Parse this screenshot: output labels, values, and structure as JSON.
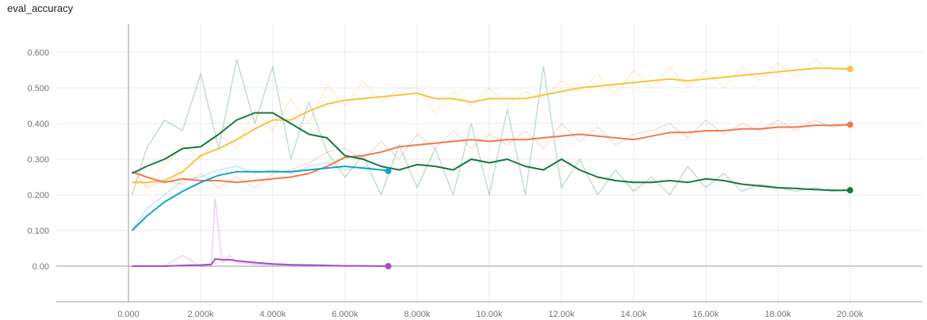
{
  "chart_data": {
    "type": "line",
    "title": "eval_accuracy",
    "xlabel": "",
    "ylabel": "",
    "xlim": [
      -2000,
      22000
    ],
    "ylim": [
      -0.1,
      0.68
    ],
    "x_ticks": [
      0,
      2000,
      4000,
      6000,
      8000,
      10000,
      12000,
      14000,
      16000,
      18000,
      20000
    ],
    "x_tick_labels": [
      "0.000",
      "2.000k",
      "4.000k",
      "6.000k",
      "8.000k",
      "10.00k",
      "12.00k",
      "14.00k",
      "16.00k",
      "18.00k",
      "20.00k"
    ],
    "y_ticks": [
      0.0,
      0.1,
      0.2,
      0.3,
      0.4,
      0.5,
      0.6
    ],
    "y_tick_labels": [
      "0.00",
      "0.100",
      "0.200",
      "0.300",
      "0.400",
      "0.500",
      "0.600"
    ],
    "grid": true,
    "legend": "none",
    "series": [
      {
        "color": "#f6c342",
        "x": [
          100,
          500,
          1000,
          1500,
          2000,
          2500,
          3000,
          3500,
          4000,
          4500,
          5000,
          5500,
          6000,
          6500,
          7000,
          7500,
          8000,
          8500,
          9000,
          9500,
          10000,
          10500,
          11000,
          11500,
          12000,
          12500,
          13000,
          13500,
          14000,
          14500,
          15000,
          15500,
          16000,
          16500,
          17000,
          17500,
          18000,
          18500,
          19000,
          19500,
          20000
        ],
        "smooth": [
          0.235,
          0.235,
          0.24,
          0.265,
          0.31,
          0.33,
          0.355,
          0.385,
          0.41,
          0.41,
          0.435,
          0.455,
          0.465,
          0.47,
          0.475,
          0.48,
          0.485,
          0.47,
          0.47,
          0.46,
          0.47,
          0.47,
          0.47,
          0.48,
          0.49,
          0.5,
          0.505,
          0.51,
          0.515,
          0.52,
          0.525,
          0.52,
          0.525,
          0.53,
          0.535,
          0.54,
          0.545,
          0.55,
          0.555,
          0.555,
          0.553
        ],
        "raw": [
          0.245,
          0.23,
          0.28,
          0.34,
          0.3,
          0.37,
          0.33,
          0.44,
          0.38,
          0.47,
          0.4,
          0.51,
          0.45,
          0.52,
          0.46,
          0.5,
          0.5,
          0.43,
          0.49,
          0.45,
          0.5,
          0.45,
          0.49,
          0.47,
          0.52,
          0.49,
          0.54,
          0.48,
          0.55,
          0.5,
          0.56,
          0.5,
          0.55,
          0.5,
          0.56,
          0.52,
          0.57,
          0.53,
          0.58,
          0.55,
          0.555
        ]
      },
      {
        "color": "#f07a4a",
        "x": [
          100,
          500,
          1000,
          1500,
          2000,
          2500,
          3000,
          3500,
          4000,
          4500,
          5000,
          5500,
          6000,
          6500,
          7000,
          7500,
          8000,
          8500,
          9000,
          9500,
          10000,
          10500,
          11000,
          11500,
          12000,
          12500,
          13000,
          13500,
          14000,
          14500,
          15000,
          15500,
          16000,
          16500,
          17000,
          17500,
          18000,
          18500,
          19000,
          19500,
          20000
        ],
        "smooth": [
          0.265,
          0.25,
          0.235,
          0.245,
          0.24,
          0.24,
          0.235,
          0.24,
          0.245,
          0.25,
          0.26,
          0.28,
          0.305,
          0.31,
          0.32,
          0.335,
          0.34,
          0.345,
          0.35,
          0.355,
          0.35,
          0.355,
          0.355,
          0.36,
          0.365,
          0.37,
          0.365,
          0.36,
          0.355,
          0.365,
          0.375,
          0.375,
          0.38,
          0.38,
          0.385,
          0.385,
          0.39,
          0.39,
          0.395,
          0.395,
          0.397
        ],
        "raw": [
          0.27,
          0.22,
          0.24,
          0.23,
          0.26,
          0.22,
          0.25,
          0.22,
          0.26,
          0.27,
          0.29,
          0.32,
          0.33,
          0.3,
          0.35,
          0.3,
          0.37,
          0.33,
          0.38,
          0.33,
          0.37,
          0.34,
          0.38,
          0.33,
          0.4,
          0.35,
          0.39,
          0.34,
          0.37,
          0.38,
          0.4,
          0.36,
          0.41,
          0.37,
          0.4,
          0.38,
          0.41,
          0.38,
          0.41,
          0.39,
          0.397
        ]
      },
      {
        "color": "#117a42",
        "x": [
          100,
          500,
          1000,
          1500,
          2000,
          2500,
          3000,
          3500,
          4000,
          4500,
          5000,
          5500,
          6000,
          6500,
          7000,
          7500,
          8000,
          8500,
          9000,
          9500,
          10000,
          10500,
          11000,
          11500,
          12000,
          12500,
          13000,
          13500,
          14000,
          14500,
          15000,
          15500,
          16000,
          16500,
          17000,
          17500,
          18000,
          18500,
          19000,
          19500,
          20000
        ],
        "smooth": [
          0.26,
          0.28,
          0.3,
          0.33,
          0.335,
          0.37,
          0.41,
          0.43,
          0.43,
          0.4,
          0.37,
          0.36,
          0.31,
          0.3,
          0.28,
          0.27,
          0.285,
          0.28,
          0.27,
          0.3,
          0.29,
          0.3,
          0.28,
          0.27,
          0.3,
          0.27,
          0.25,
          0.24,
          0.235,
          0.235,
          0.24,
          0.235,
          0.245,
          0.24,
          0.23,
          0.225,
          0.22,
          0.218,
          0.215,
          0.213,
          0.213
        ],
        "raw": [
          0.2,
          0.33,
          0.41,
          0.38,
          0.54,
          0.33,
          0.58,
          0.4,
          0.56,
          0.3,
          0.46,
          0.32,
          0.25,
          0.31,
          0.2,
          0.34,
          0.22,
          0.33,
          0.2,
          0.4,
          0.2,
          0.44,
          0.2,
          0.56,
          0.22,
          0.3,
          0.2,
          0.27,
          0.21,
          0.25,
          0.2,
          0.28,
          0.22,
          0.26,
          0.21,
          0.23,
          0.22,
          0.21,
          0.22,
          0.21,
          0.213
        ]
      },
      {
        "color": "#15a3c4",
        "x": [
          100,
          500,
          1000,
          1500,
          2000,
          2500,
          3000,
          3500,
          4000,
          4500,
          5000,
          5500,
          6000,
          6500,
          7000,
          7200
        ],
        "smooth": [
          0.1,
          0.14,
          0.18,
          0.21,
          0.235,
          0.255,
          0.265,
          0.265,
          0.265,
          0.265,
          0.27,
          0.275,
          0.28,
          0.275,
          0.27,
          0.267
        ],
        "raw": [
          0.1,
          0.16,
          0.2,
          0.24,
          0.25,
          0.27,
          0.28,
          0.26,
          0.27,
          0.26,
          0.28,
          0.29,
          0.27,
          0.28,
          0.27,
          0.267
        ]
      },
      {
        "color": "#a94ac9",
        "x": [
          100,
          500,
          1000,
          1500,
          2000,
          2300,
          2400,
          2600,
          2800,
          3000,
          3500,
          4000,
          4500,
          5000,
          5500,
          6000,
          6500,
          7000,
          7200
        ],
        "smooth": [
          0.0,
          0.0,
          0.0,
          0.002,
          0.003,
          0.005,
          0.02,
          0.018,
          0.018,
          0.015,
          0.01,
          0.006,
          0.004,
          0.003,
          0.002,
          0.001,
          0.001,
          0.0,
          0.0
        ],
        "raw": [
          0.0,
          0.0,
          0.0,
          0.03,
          0.0,
          0.0,
          0.19,
          0.01,
          0.03,
          0.01,
          0.005,
          0.003,
          0.002,
          0.001,
          0.001,
          0.0,
          0.0,
          0.0,
          0.0
        ]
      }
    ]
  }
}
